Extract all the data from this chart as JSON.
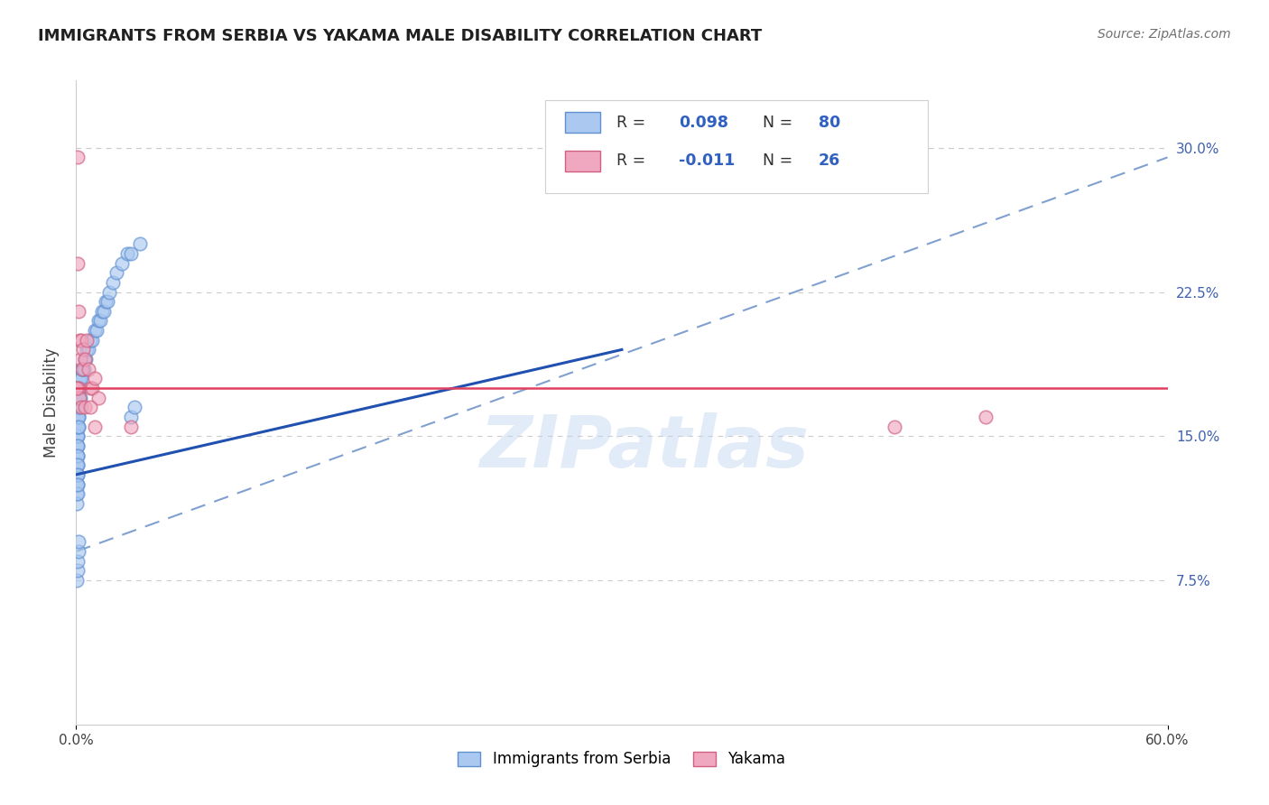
{
  "title": "IMMIGRANTS FROM SERBIA VS YAKAMA MALE DISABILITY CORRELATION CHART",
  "source": "Source: ZipAtlas.com",
  "ylabel": "Male Disability",
  "xlim": [
    0.0,
    0.6
  ],
  "ylim": [
    0.0,
    0.335
  ],
  "xticks": [
    0.0,
    0.6
  ],
  "xticklabels": [
    "0.0%",
    "60.0%"
  ],
  "yticks": [
    0.075,
    0.15,
    0.225,
    0.3
  ],
  "yticklabels": [
    "7.5%",
    "15.0%",
    "22.5%",
    "30.0%"
  ],
  "color_blue": "#aac8f0",
  "color_pink": "#f0a8c0",
  "color_blue_edge": "#6090d0",
  "color_pink_edge": "#d06080",
  "color_trendline_blue": "#2050b0",
  "color_trendline_pink": "#e04060",
  "color_dashed": "#80a0d0",
  "color_title": "#202020",
  "color_source": "#707070",
  "color_ytick": "#4060b0",
  "watermark_text": "ZIPatlas",
  "serbia_x": [
    0.0005,
    0.0005,
    0.0005,
    0.0005,
    0.0005,
    0.0005,
    0.0005,
    0.0005,
    0.0005,
    0.0005,
    0.0008,
    0.0008,
    0.0008,
    0.0008,
    0.0008,
    0.0008,
    0.0008,
    0.0008,
    0.0008,
    0.0008,
    0.001,
    0.001,
    0.001,
    0.001,
    0.001,
    0.001,
    0.001,
    0.001,
    0.001,
    0.001,
    0.0012,
    0.0012,
    0.0012,
    0.0012,
    0.0012,
    0.0015,
    0.0015,
    0.0015,
    0.0015,
    0.0015,
    0.002,
    0.002,
    0.002,
    0.002,
    0.0025,
    0.0025,
    0.0025,
    0.003,
    0.003,
    0.0035,
    0.004,
    0.0045,
    0.005,
    0.0055,
    0.006,
    0.007,
    0.008,
    0.009,
    0.01,
    0.011,
    0.012,
    0.013,
    0.014,
    0.015,
    0.016,
    0.017,
    0.018,
    0.02,
    0.022,
    0.025,
    0.028,
    0.03,
    0.035,
    0.0005,
    0.0008,
    0.001,
    0.0012,
    0.0015,
    0.03,
    0.032
  ],
  "serbia_y": [
    0.16,
    0.155,
    0.15,
    0.145,
    0.14,
    0.135,
    0.13,
    0.125,
    0.12,
    0.115,
    0.165,
    0.16,
    0.155,
    0.15,
    0.145,
    0.14,
    0.135,
    0.13,
    0.125,
    0.12,
    0.17,
    0.165,
    0.16,
    0.155,
    0.15,
    0.145,
    0.14,
    0.135,
    0.13,
    0.125,
    0.175,
    0.17,
    0.165,
    0.16,
    0.155,
    0.175,
    0.17,
    0.165,
    0.16,
    0.155,
    0.18,
    0.175,
    0.17,
    0.165,
    0.18,
    0.175,
    0.17,
    0.185,
    0.18,
    0.185,
    0.185,
    0.185,
    0.19,
    0.19,
    0.195,
    0.195,
    0.2,
    0.2,
    0.205,
    0.205,
    0.21,
    0.21,
    0.215,
    0.215,
    0.22,
    0.22,
    0.225,
    0.23,
    0.235,
    0.24,
    0.245,
    0.245,
    0.25,
    0.075,
    0.08,
    0.085,
    0.09,
    0.095,
    0.16,
    0.165
  ],
  "yakama_x": [
    0.0008,
    0.001,
    0.0015,
    0.002,
    0.0025,
    0.003,
    0.0035,
    0.004,
    0.005,
    0.006,
    0.007,
    0.008,
    0.009,
    0.01,
    0.012,
    0.0008,
    0.0015,
    0.002,
    0.003,
    0.005,
    0.008,
    0.01,
    0.0005,
    0.03,
    0.45,
    0.5
  ],
  "yakama_y": [
    0.295,
    0.24,
    0.215,
    0.2,
    0.19,
    0.2,
    0.185,
    0.195,
    0.19,
    0.2,
    0.185,
    0.175,
    0.175,
    0.18,
    0.17,
    0.175,
    0.175,
    0.17,
    0.165,
    0.165,
    0.165,
    0.155,
    0.175,
    0.155,
    0.155,
    0.16
  ],
  "blue_trend_x": [
    0.0,
    0.3
  ],
  "blue_trend_y": [
    0.13,
    0.195
  ],
  "pink_trend_x": [
    0.0,
    0.6
  ],
  "pink_trend_y": [
    0.175,
    0.175
  ],
  "dash_trend_x": [
    0.0,
    0.6
  ],
  "dash_trend_y": [
    0.09,
    0.295
  ]
}
